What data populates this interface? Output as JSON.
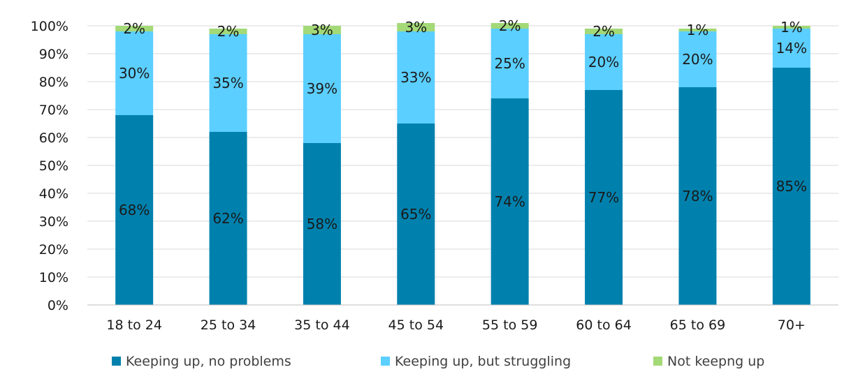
{
  "chart_data": {
    "type": "bar",
    "stacked": true,
    "categories": [
      "18 to 24",
      "25 to 34",
      "35 to 44",
      "45 to 54",
      "55 to 59",
      "60 to 64",
      "65 to 69",
      "70+"
    ],
    "series": [
      {
        "name": "Keeping up, no problems",
        "color": "#0081ad",
        "values": [
          68,
          62,
          58,
          65,
          74,
          77,
          78,
          85
        ],
        "labels": [
          "68%",
          "62%",
          "58%",
          "65%",
          "74%",
          "77%",
          "78%",
          "85%"
        ]
      },
      {
        "name": "Keeping up, but struggling",
        "color": "#5bcfff",
        "values": [
          30,
          35,
          39,
          33,
          25,
          20,
          20,
          14
        ],
        "labels": [
          "30%",
          "35%",
          "39%",
          "33%",
          "25%",
          "20%",
          "20%",
          "14%"
        ]
      },
      {
        "name": "Not keepng up",
        "color": "#a3d977",
        "values": [
          2,
          2,
          3,
          3,
          2,
          2,
          1,
          1
        ],
        "labels": [
          "2%",
          "2%",
          "3%",
          "3%",
          "2%",
          "2%",
          "1%",
          "1%"
        ]
      }
    ],
    "yticks": [
      "0%",
      "10%",
      "20%",
      "30%",
      "40%",
      "50%",
      "60%",
      "70%",
      "80%",
      "90%",
      "100%"
    ],
    "ylim": [
      0,
      100
    ],
    "grid": true,
    "legend": "bottom"
  }
}
